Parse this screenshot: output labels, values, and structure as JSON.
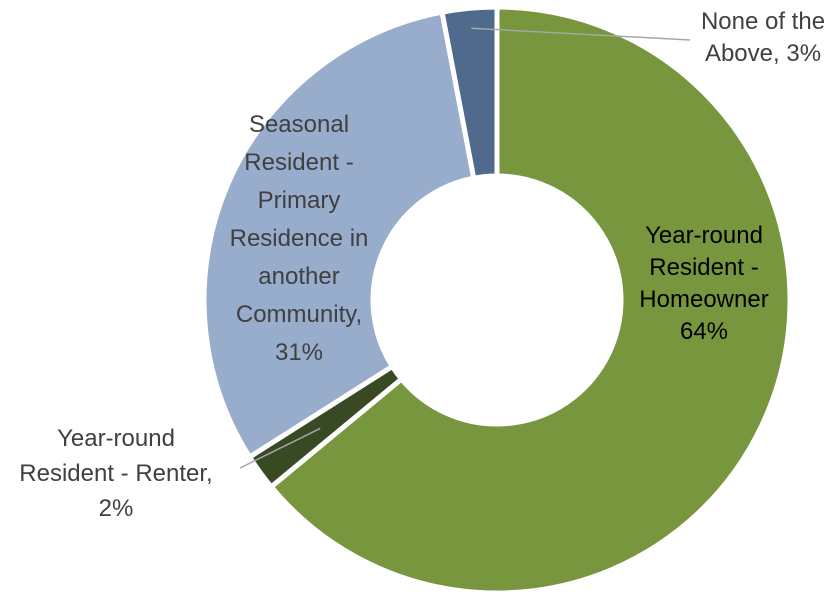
{
  "chart_data": {
    "type": "pie",
    "donut": true,
    "title": "",
    "categories": [
      "Year-round Resident - Homeowner",
      "Year-round Resident - Renter",
      "Seasonal Resident - Primary Residence in another Community",
      "None of the Above"
    ],
    "values": [
      64,
      2,
      31,
      3
    ],
    "unit": "%",
    "colors": [
      "#77963D",
      "#374A23",
      "#98ACCB",
      "#4F6A8D"
    ],
    "data_labels": [
      [
        "Year-round",
        "Resident -",
        "Homeowner",
        "64%"
      ],
      [
        "Year-round",
        "Resident - Renter,",
        "2%"
      ],
      [
        "Seasonal",
        "Resident -",
        "Primary",
        "Residence in",
        "another",
        "Community,",
        "31%"
      ],
      [
        "None of the",
        "Above, 3%"
      ]
    ],
    "legend": "none"
  }
}
